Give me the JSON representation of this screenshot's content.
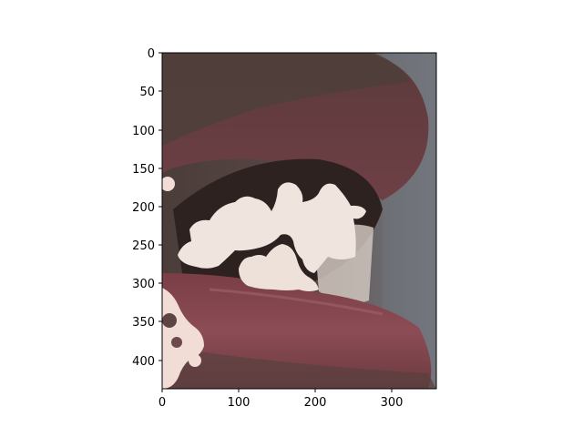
{
  "figure": {
    "x_ticks": [
      "0",
      "100",
      "200",
      "300"
    ],
    "y_ticks": [
      "0",
      "50",
      "100",
      "150",
      "200",
      "250",
      "300",
      "350",
      "400"
    ]
  },
  "colors": {
    "skin_dark": "#4a3c38",
    "skin_mid": "#6b5450",
    "lip": "#8a4a52",
    "lip_highlight": "#a0626a",
    "mouth_shadow": "#2e2220",
    "teeth": "#efe4de",
    "background_gray": "#6e7278",
    "mask_overlay": "#f2ddd6"
  }
}
